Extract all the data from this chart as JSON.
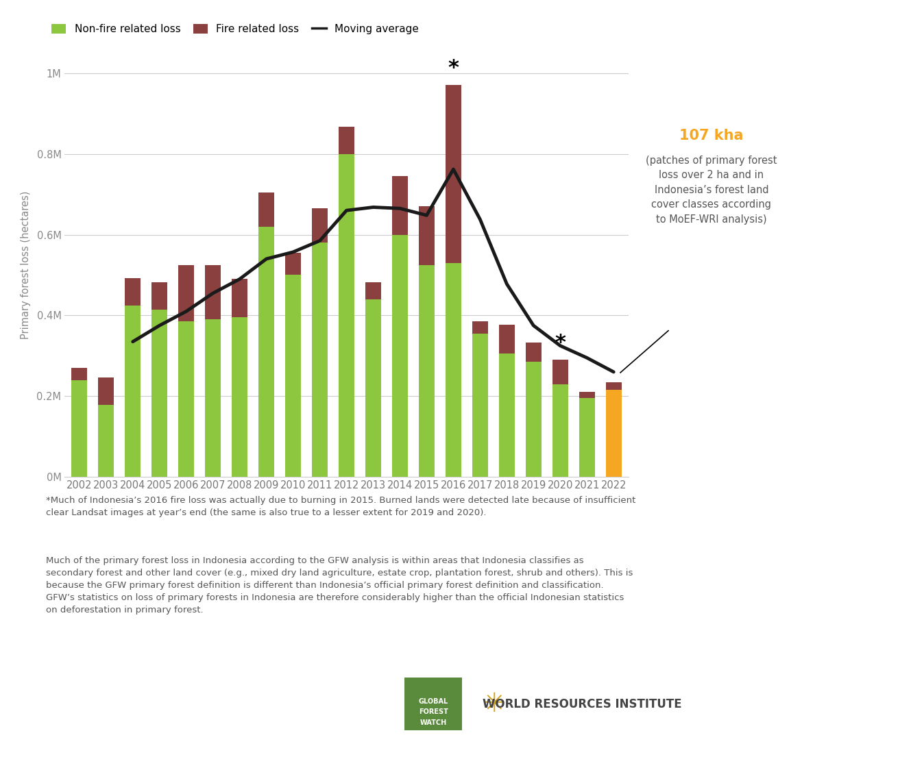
{
  "years": [
    2002,
    2003,
    2004,
    2005,
    2006,
    2007,
    2008,
    2009,
    2010,
    2011,
    2012,
    2013,
    2014,
    2015,
    2016,
    2017,
    2018,
    2019,
    2020,
    2021,
    2022
  ],
  "non_fire": [
    0.24,
    0.178,
    0.425,
    0.415,
    0.385,
    0.39,
    0.395,
    0.62,
    0.5,
    0.58,
    0.8,
    0.44,
    0.6,
    0.525,
    0.53,
    0.355,
    0.305,
    0.285,
    0.23,
    0.195,
    0.215
  ],
  "fire": [
    0.03,
    0.068,
    0.068,
    0.068,
    0.14,
    0.135,
    0.095,
    0.085,
    0.055,
    0.085,
    0.068,
    0.042,
    0.145,
    0.145,
    0.44,
    0.03,
    0.072,
    0.048,
    0.06,
    0.015,
    0.02
  ],
  "moving_avg": [
    null,
    null,
    0.335,
    0.375,
    0.41,
    0.455,
    0.49,
    0.54,
    0.557,
    0.585,
    0.66,
    0.668,
    0.665,
    0.648,
    0.762,
    0.638,
    0.478,
    0.375,
    0.325,
    0.295,
    0.26
  ],
  "non_fire_color": "#8DC63F",
  "fire_color": "#8B4040",
  "moving_avg_color": "#1a1a1a",
  "highlight_2022_color": "#F5A623",
  "ylabel": "Primary forest loss (hectares)",
  "yticks": [
    0,
    0.2,
    0.4,
    0.6,
    0.8,
    1.0
  ],
  "ytick_labels": [
    "0M",
    "0.2M",
    "0.4M",
    "0.6M",
    "0.8M",
    "1M"
  ],
  "annotation_kha": "107 kha",
  "annotation_sub": "(patches of primary forest\nloss over 2 ha and in\nIndonesia’s forest land\ncover classes according\nto MoEF-WRI analysis)",
  "annotation_color": "#F5A623",
  "footnote1": "*Much of Indonesia’s 2016 fire loss was actually due to burning in 2015. Burned lands were detected late because of insufficient\nclear Landsat images at year’s end (the same is also true to a lesser extent for 2019 and 2020).",
  "footnote2": "Much of the primary forest loss in Indonesia according to the GFW analysis is within areas that Indonesia classifies as\nsecondary forest and other land cover (e.g., mixed dry land agriculture, estate crop, plantation forest, shrub and others). This is\nbecause the GFW primary forest definition is different than Indonesia’s official primary forest definition and classification.\nGFW’s statistics on loss of primary forests in Indonesia are therefore considerably higher than the official Indonesian statistics\non deforestation in primary forest.",
  "background_color": "#FFFFFF",
  "bar_width": 0.6,
  "ylim": [
    0,
    1.05
  ]
}
